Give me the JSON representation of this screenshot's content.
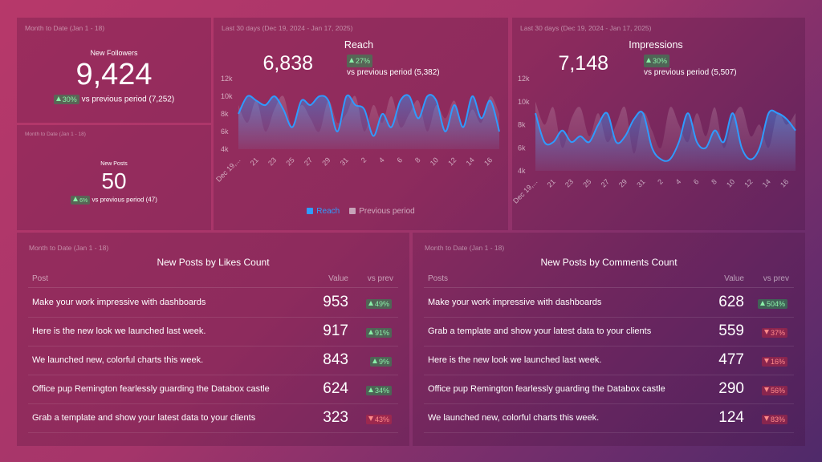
{
  "kpis": [
    {
      "period": "Month to Date (Jan 1 - 18)",
      "title": "New Followers",
      "value": "9,424",
      "change": "30%",
      "trend": "up",
      "comparison": "vs previous period (7,252)"
    },
    {
      "period": "Month to Date (Jan 1 - 18)",
      "title": "New Posts",
      "value": "50",
      "change": "6%",
      "trend": "up",
      "comparison": "vs previous period (47)"
    }
  ],
  "chart_data": [
    {
      "type": "line",
      "period": "Last 30 days (Dec 19, 2024 - Jan 17, 2025)",
      "title": "Reach",
      "headline": "6,838",
      "change": "27%",
      "trend": "up",
      "comparison": "vs previous period (5,382)",
      "categories": [
        "Dec 19,...",
        null,
        "21",
        null,
        "23",
        null,
        "25",
        null,
        "27",
        null,
        "29",
        null,
        "31",
        null,
        "2",
        null,
        "4",
        null,
        "6",
        null,
        "8",
        null,
        "10",
        null,
        "12",
        null,
        "14",
        null,
        "16",
        null
      ],
      "series": [
        {
          "name": "Reach",
          "color": "#2f9bff",
          "values": [
            8000,
            10000,
            9500,
            9000,
            10000,
            8500,
            6500,
            9500,
            9000,
            10000,
            9500,
            6000,
            10000,
            9000,
            8500,
            5500,
            8000,
            6500,
            9500,
            10000,
            7500,
            10000,
            9500,
            6000,
            9000,
            6500,
            10000,
            7500,
            9500,
            6000
          ]
        },
        {
          "name": "Previous period",
          "color": "#c7a3b9",
          "values": [
            9000,
            7000,
            9500,
            6000,
            8500,
            10000,
            6500,
            9000,
            7500,
            6000,
            9500,
            7000,
            8000,
            10000,
            6000,
            9000,
            7000,
            10000,
            6500,
            8000,
            9500,
            6000,
            9000,
            7500,
            9500,
            6500,
            8500,
            7000,
            10000,
            8000
          ]
        }
      ],
      "ylim": [
        4000,
        12000
      ],
      "yticks": [
        {
          "value": 4000,
          "label": "4k"
        },
        {
          "value": 6000,
          "label": "6k"
        },
        {
          "value": 8000,
          "label": "8k"
        },
        {
          "value": 10000,
          "label": "10k"
        },
        {
          "value": 12000,
          "label": "12k"
        }
      ],
      "grid": false,
      "legend": true
    },
    {
      "type": "line",
      "period": "Last 30 days (Dec 19, 2024 - Jan 17, 2025)",
      "title": "Impressions",
      "headline": "7,148",
      "change": "30%",
      "trend": "up",
      "comparison": "vs previous period (5,507)",
      "categories": [
        "Dec 19,...",
        null,
        "21",
        null,
        "23",
        null,
        "25",
        null,
        "27",
        null,
        "29",
        null,
        "31",
        null,
        "2",
        null,
        "4",
        null,
        "6",
        null,
        "8",
        null,
        "10",
        null,
        "12",
        null,
        "14",
        null,
        "16",
        null
      ],
      "series": [
        {
          "color": "#2f9bff",
          "values": [
            9000,
            6500,
            6500,
            7500,
            6500,
            7000,
            6500,
            8000,
            9000,
            6500,
            7000,
            8500,
            9000,
            6000,
            5000,
            5000,
            6500,
            9000,
            6500,
            6000,
            7500,
            6500,
            9000,
            6000,
            5000,
            6000,
            9000,
            9000,
            8500,
            7500
          ]
        },
        {
          "color": "#c7a3b9",
          "values": [
            10000,
            8000,
            9500,
            6000,
            8500,
            9500,
            7000,
            9000,
            6500,
            8000,
            9500,
            5500,
            9000,
            7500,
            6000,
            9500,
            8000,
            6500,
            9000,
            7000,
            9500,
            6000,
            8500,
            9500,
            7000,
            8000,
            6000,
            9000,
            8000,
            9000
          ]
        }
      ],
      "ylim": [
        4000,
        12000
      ],
      "yticks": [
        {
          "value": 4000,
          "label": "4k"
        },
        {
          "value": 6000,
          "label": "6k"
        },
        {
          "value": 8000,
          "label": "8k"
        },
        {
          "value": 10000,
          "label": "10k"
        },
        {
          "value": 12000,
          "label": "12k"
        }
      ],
      "grid": false,
      "legend": false
    }
  ],
  "tables": [
    {
      "period": "Month to Date (Jan 1 - 18)",
      "title": "New Posts by Likes Count",
      "columns": [
        "Post",
        "Value",
        "vs prev"
      ],
      "rows": [
        {
          "post": "Make your work impressive with dashboards",
          "value": "953",
          "change": "49%",
          "trend": "up"
        },
        {
          "post": "Here is the new look we launched last week.",
          "value": "917",
          "change": "91%",
          "trend": "up"
        },
        {
          "post": "We launched new, colorful charts this week.",
          "value": "843",
          "change": "9%",
          "trend": "up"
        },
        {
          "post": "Office pup Remington fearlessly guarding the Databox castle",
          "value": "624",
          "change": "34%",
          "trend": "up"
        },
        {
          "post": "Grab a template and show your latest data to your clients",
          "value": "323",
          "change": "43%",
          "trend": "down"
        }
      ]
    },
    {
      "period": "Month to Date (Jan 1 - 18)",
      "title": "New Posts by Comments Count",
      "columns": [
        "Posts",
        "Value",
        "vs prev"
      ],
      "rows": [
        {
          "post": "Make your work impressive with dashboards",
          "value": "628",
          "change": "504%",
          "trend": "up"
        },
        {
          "post": "Grab a template and show your latest data to your clients",
          "value": "559",
          "change": "37%",
          "trend": "down"
        },
        {
          "post": "Here is the new look we launched last week.",
          "value": "477",
          "change": "16%",
          "trend": "down"
        },
        {
          "post": "Office pup Remington fearlessly guarding the Databox castle",
          "value": "290",
          "change": "56%",
          "trend": "down"
        },
        {
          "post": "We launched new, colorful charts this week.",
          "value": "124",
          "change": "83%",
          "trend": "down"
        }
      ]
    }
  ]
}
